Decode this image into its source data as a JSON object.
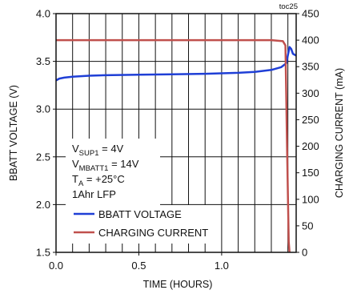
{
  "chart_data": {
    "type": "line",
    "figure_tag": "toc25",
    "xlabel": "TIME (HOURS)",
    "ylabel_left": "BBATT VOLTAGE (V)",
    "ylabel_right": "CHARGING CURRENT (mA)",
    "xlim": [
      0,
      1.45
    ],
    "ylim_left": [
      1.5,
      4.0
    ],
    "ylim_right": [
      0,
      450
    ],
    "x_ticks": [
      "0.0",
      "0.5",
      "1.0"
    ],
    "x_tick_values": [
      0,
      0.5,
      1.0
    ],
    "y_left_ticks": [
      "1.5",
      "2.0",
      "2.5",
      "3.0",
      "3.5",
      "4.0"
    ],
    "y_left_tick_values": [
      1.5,
      2.0,
      2.5,
      3.0,
      3.5,
      4.0
    ],
    "y_right_ticks": [
      "0",
      "50",
      "100",
      "150",
      "200",
      "250",
      "300",
      "350",
      "400",
      "450"
    ],
    "y_right_tick_values": [
      0,
      50,
      100,
      150,
      200,
      250,
      300,
      350,
      400,
      450
    ],
    "grid": true,
    "legend_position": "bottom-left",
    "series": [
      {
        "name": "BBATT VOLTAGE",
        "axis": "left",
        "color": "#1f3fd6",
        "x": [
          0.0,
          0.02,
          0.05,
          0.1,
          0.2,
          0.3,
          0.5,
          0.7,
          0.9,
          1.0,
          1.1,
          1.2,
          1.3,
          1.36,
          1.39,
          1.41,
          1.42,
          1.43,
          1.45
        ],
        "y": [
          3.3,
          3.32,
          3.33,
          3.34,
          3.35,
          3.355,
          3.36,
          3.365,
          3.37,
          3.375,
          3.38,
          3.39,
          3.41,
          3.44,
          3.48,
          3.65,
          3.63,
          3.58,
          3.56
        ]
      },
      {
        "name": "CHARGING CURRENT",
        "axis": "right",
        "color": "#c0504d",
        "x": [
          0.0,
          0.5,
          1.0,
          1.3,
          1.37,
          1.385,
          1.395,
          1.405,
          1.41
        ],
        "y": [
          400,
          400,
          400,
          400,
          398,
          390,
          200,
          20,
          0
        ]
      }
    ],
    "annotations": [
      {
        "main": "V",
        "sub": "SUP1",
        "rest": " = 4V"
      },
      {
        "main": "V",
        "sub": "MBATT1",
        "rest": " = 14V"
      },
      {
        "main": "T",
        "sub": "A",
        "rest": " = +25°C"
      },
      {
        "main": "1Ahr LFP",
        "sub": "",
        "rest": ""
      }
    ]
  }
}
